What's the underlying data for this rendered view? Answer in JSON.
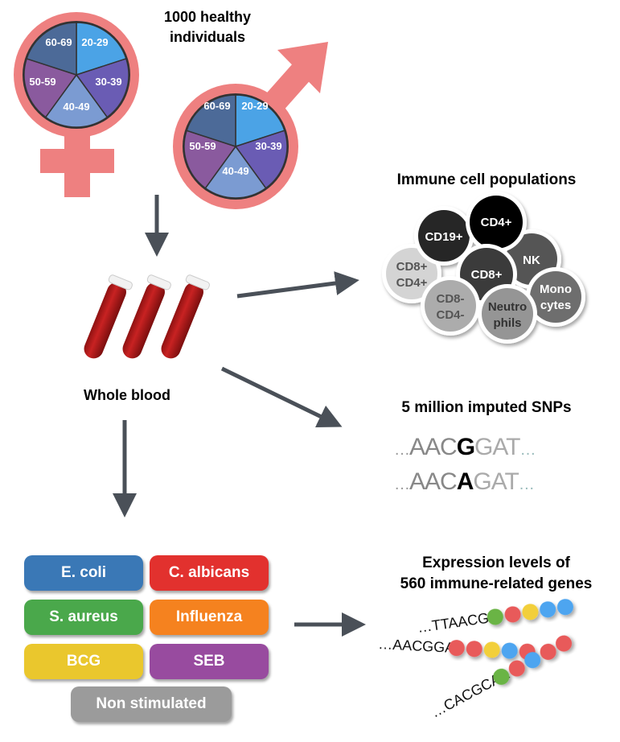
{
  "cohort": {
    "title_line1": "1000 healthy",
    "title_line2": "individuals",
    "age_groups": [
      "20-29",
      "30-39",
      "40-49",
      "50-59",
      "60-69"
    ],
    "age_colors": [
      "#4ba3e6",
      "#6a5cb4",
      "#7b9bd2",
      "#8a5a9e",
      "#4c6a98"
    ],
    "symbol_color": "#ee8080"
  },
  "blood": {
    "label": "Whole blood"
  },
  "cells": {
    "title": "Immune cell populations",
    "items": [
      {
        "line1": "CD8+",
        "line2": "CD4+"
      },
      {
        "line1": "CD19+"
      },
      {
        "line1": "CD4+"
      },
      {
        "line1": "NK"
      },
      {
        "line1": "CD8+"
      },
      {
        "line1": "CD8-",
        "line2": "CD4-"
      },
      {
        "line1": "Neutro",
        "line2": "phils"
      },
      {
        "line1": "Mono",
        "line2": "cytes"
      }
    ]
  },
  "snps": {
    "title": "5 million imputed SNPs",
    "seq1": {
      "prefix": "…",
      "left": "AAC",
      "allele": "G",
      "right": "GAT",
      "suffix": "…"
    },
    "seq2": {
      "prefix": "…",
      "left": "AAC",
      "allele": "A",
      "right": "GAT",
      "suffix": "…"
    }
  },
  "stimuli": {
    "items": [
      {
        "label": "E. coli",
        "color": "#3a78b6"
      },
      {
        "label": "C. albicans",
        "color": "#e2312e"
      },
      {
        "label": "S. aureus",
        "color": "#4aa84b"
      },
      {
        "label": "Influenza",
        "color": "#f5821f"
      },
      {
        "label": "BCG",
        "color": "#eac72d"
      },
      {
        "label": "SEB",
        "color": "#984b9f"
      },
      {
        "label": "Non stimulated",
        "color": "#9b9b9b"
      }
    ]
  },
  "expression": {
    "title_line1": "Expression levels of",
    "title_line2": "560 immune-related genes",
    "strands": [
      {
        "seq": "…TTAACGG",
        "beads": [
          "#6ab445",
          "#e85a5a",
          "#f2cf3a",
          "#4ea5f0",
          "#4ea5f0"
        ]
      },
      {
        "seq": "…AACGGAT",
        "beads": [
          "#e85a5a",
          "#e85a5a",
          "#f2cf3a",
          "#4ea5f0",
          "#e85a5a"
        ]
      },
      {
        "seq": "…CACGCAA",
        "beads": [
          "#6ab445",
          "#e85a5a",
          "#4ea5f0",
          "#e85a5a",
          "#e85a5a"
        ]
      }
    ]
  }
}
